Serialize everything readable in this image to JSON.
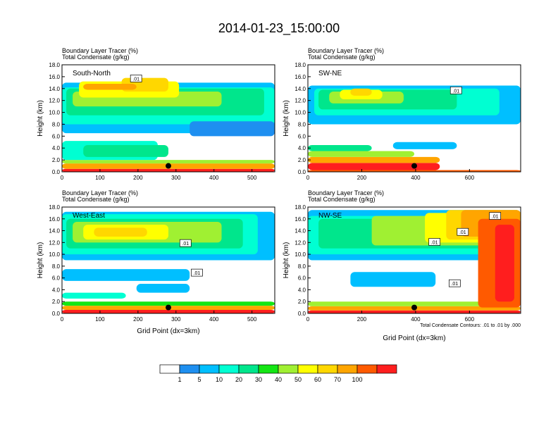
{
  "title": "2014-01-23_15:00:00",
  "chart_data": {
    "type": "heatmap",
    "title": "2014-01-23_15:00:00",
    "panel_title_lines": [
      "Boundary Layer Tracer   (%)",
      "Total Condensate   (g/kg)"
    ],
    "ylabel": "Height (km)",
    "xlabel": "Grid Point (dx=3km)",
    "y_ticks": [
      "0.0",
      "2.0",
      "4.0",
      "6.0",
      "8.0",
      "10.0",
      "12.0",
      "14.0",
      "16.0",
      "18.0"
    ],
    "ylim": [
      0,
      18
    ],
    "contour_note": "Total Condensate Contours: .01 to .01 by .000",
    "panels": [
      {
        "name": "South-North",
        "xlim": [
          0,
          560
        ],
        "x_ticks": [
          0,
          100,
          200,
          300,
          400,
          500
        ],
        "contour_labels": [
          {
            "text": ".01",
            "x": 195,
            "y": 15.7
          }
        ],
        "marker": {
          "x": 280,
          "y": 1.0
        }
      },
      {
        "name": "SW-NE",
        "xlim": [
          0,
          790
        ],
        "x_ticks": [
          0,
          200,
          400,
          600
        ],
        "contour_labels": [
          {
            "text": ".01",
            "x": 550,
            "y": 13.7
          }
        ],
        "marker": {
          "x": 395,
          "y": 1.0
        }
      },
      {
        "name": "West-East",
        "xlim": [
          0,
          560
        ],
        "x_ticks": [
          0,
          100,
          200,
          300,
          400,
          500
        ],
        "contour_labels": [
          {
            "text": ".01",
            "x": 325,
            "y": 11.9
          },
          {
            "text": ".01",
            "x": 355,
            "y": 6.9
          }
        ],
        "marker": {
          "x": 280,
          "y": 1.0
        }
      },
      {
        "name": "NW-SE",
        "xlim": [
          0,
          790
        ],
        "x_ticks": [
          0,
          200,
          400,
          600
        ],
        "contour_labels": [
          {
            "text": ".01",
            "x": 470,
            "y": 12.1
          },
          {
            "text": ".01",
            "x": 575,
            "y": 13.8
          },
          {
            "text": ".01",
            "x": 695,
            "y": 16.5
          },
          {
            "text": ".01",
            "x": 545,
            "y": 5.1
          }
        ],
        "marker": {
          "x": 395,
          "y": 1.0
        }
      }
    ],
    "colorbar": {
      "colors": [
        "#ffffff",
        "#1e8ff0",
        "#00bfff",
        "#00ffd2",
        "#00e68c",
        "#14e614",
        "#a0f032",
        "#ffff00",
        "#ffd700",
        "#ffa500",
        "#ff5a00",
        "#ff1e1e"
      ],
      "labels": [
        "1",
        "5",
        "10",
        "20",
        "30",
        "40",
        "50",
        "60",
        "70",
        "100"
      ]
    }
  }
}
